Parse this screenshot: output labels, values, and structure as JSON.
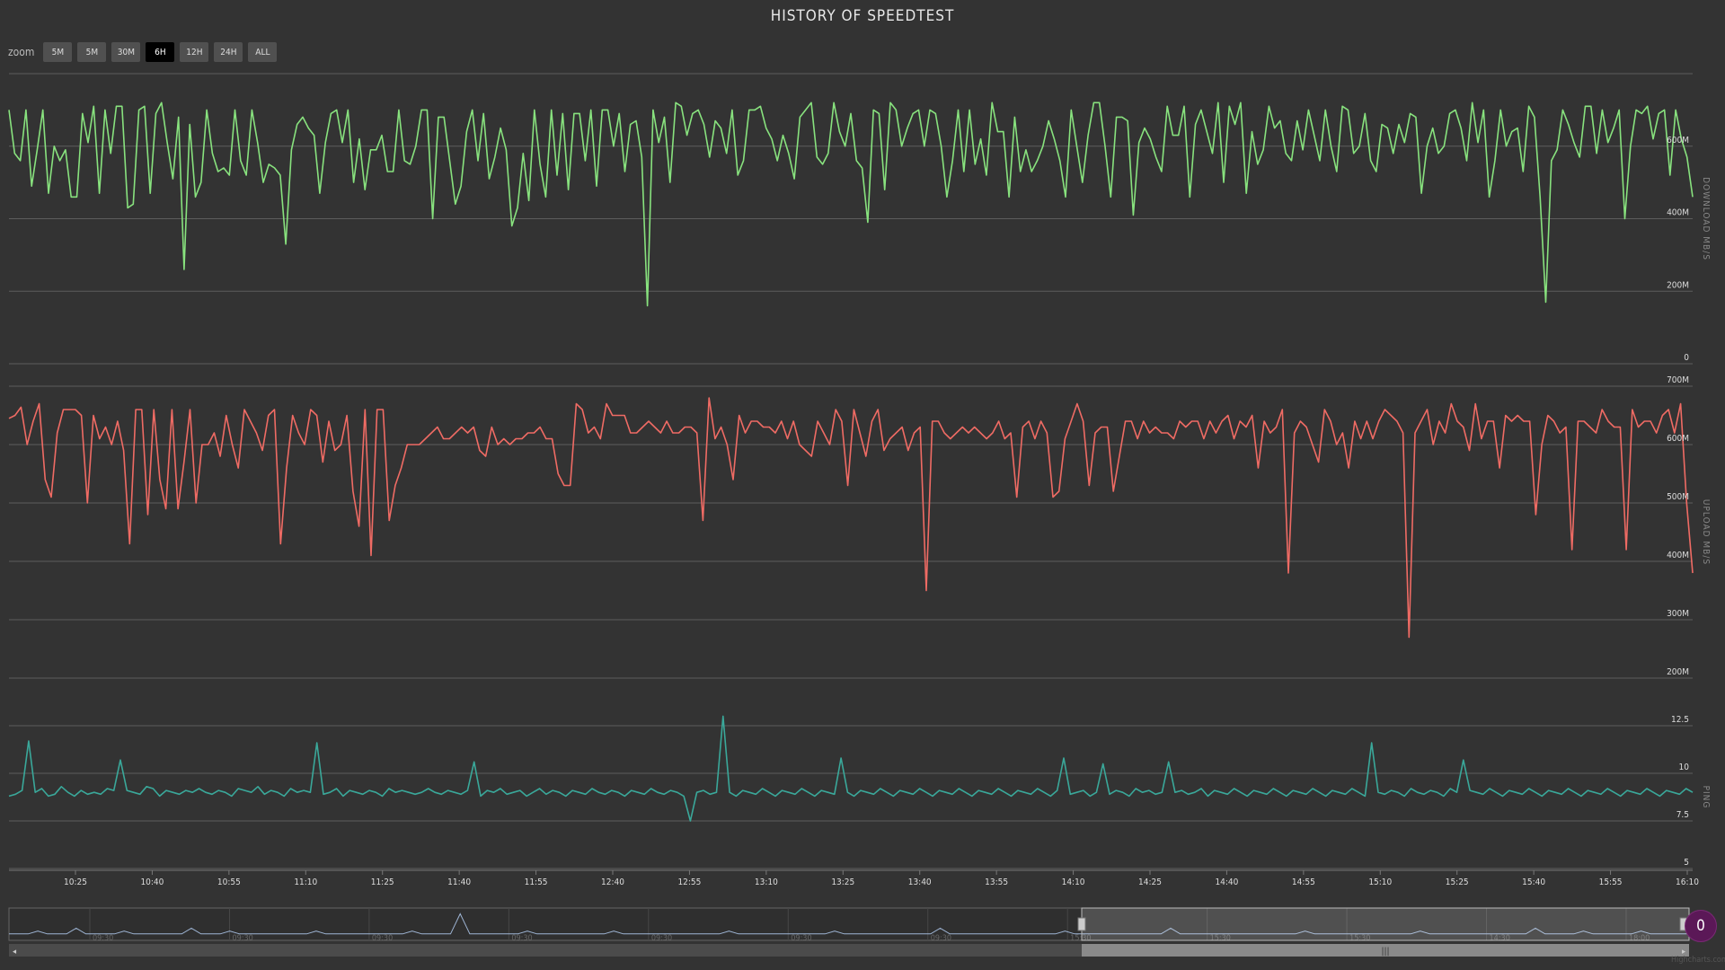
{
  "title": "HISTORY OF SPEEDTEST",
  "zoom": {
    "label": "zoom",
    "buttons": [
      "5M",
      "5M",
      "30M",
      "6H",
      "12H",
      "24H",
      "ALL"
    ],
    "active_index": 3
  },
  "colors": {
    "background": "#333333",
    "download": "#88e27e",
    "upload": "#ef6b64",
    "ping": "#3aa89a",
    "navigator": "#9fb6d6",
    "grid": "#5c5c5c"
  },
  "badge": "0",
  "credits": "Highcharts.com",
  "chart_data": [
    {
      "type": "line",
      "title": "HISTORY OF SPEEDTEST",
      "ylabel": "DOWNLOAD MB/S",
      "ylim": [
        0,
        800
      ],
      "yticks": [
        0,
        200,
        400,
        600
      ],
      "ytick_labels": [
        "0",
        "200M",
        "400M",
        "600M"
      ],
      "grid": true,
      "x_range": [
        "10:16",
        "18:13"
      ],
      "series": [
        {
          "color": "#88e27e",
          "values": [
            700,
            580,
            560,
            700,
            490,
            590,
            700,
            470,
            600,
            560,
            590,
            460,
            460,
            690,
            610,
            710,
            470,
            700,
            580,
            710,
            710,
            430,
            440,
            700,
            710,
            470,
            690,
            720,
            610,
            510,
            680,
            260,
            660,
            460,
            500,
            700,
            580,
            530,
            540,
            520,
            700,
            560,
            520,
            700,
            610,
            500,
            550,
            540,
            520,
            330,
            590,
            660,
            680,
            650,
            630,
            470,
            610,
            690,
            700,
            610,
            700,
            500,
            620,
            480,
            590,
            590,
            630,
            530,
            530,
            700,
            560,
            550,
            600,
            700,
            700,
            400,
            680,
            680,
            560,
            440,
            490,
            640,
            700,
            560,
            690,
            510,
            570,
            650,
            590,
            380,
            430,
            580,
            450,
            700,
            550,
            460,
            700,
            520,
            690,
            480,
            690,
            690,
            560,
            700,
            490,
            700,
            700,
            600,
            690,
            530,
            660,
            670,
            570,
            160,
            700,
            610,
            680,
            500,
            720,
            710,
            630,
            690,
            700,
            660,
            570,
            670,
            650,
            580,
            700,
            520,
            560,
            700,
            700,
            710,
            650,
            620,
            560,
            630,
            580,
            510,
            680,
            700,
            720,
            570,
            550,
            580,
            720,
            640,
            600,
            690,
            560,
            540,
            390,
            700,
            690,
            480,
            720,
            700,
            600,
            650,
            690,
            700,
            600,
            700,
            690,
            600,
            460,
            560,
            700,
            530,
            700,
            550,
            620,
            520,
            720,
            640,
            640,
            460,
            680,
            530,
            590,
            530,
            560,
            600,
            670,
            620,
            560,
            460,
            700,
            600,
            500,
            630,
            720,
            720,
            600,
            460,
            680,
            680,
            670,
            410,
            610,
            650,
            620,
            570,
            530,
            710,
            630,
            630,
            710,
            460,
            660,
            700,
            640,
            580,
            720,
            500,
            710,
            660,
            720,
            470,
            640,
            550,
            590,
            710,
            650,
            670,
            580,
            560,
            670,
            590,
            700,
            630,
            560,
            700,
            600,
            530,
            710,
            700,
            580,
            600,
            690,
            560,
            530,
            660,
            650,
            580,
            660,
            610,
            690,
            680,
            470,
            600,
            650,
            580,
            600,
            690,
            700,
            650,
            560,
            720,
            610,
            700,
            460,
            560,
            700,
            600,
            640,
            650,
            530,
            710,
            680,
            460,
            170,
            560,
            590,
            700,
            660,
            610,
            570,
            710,
            710,
            580,
            700,
            610,
            650,
            700,
            400,
            600,
            700,
            690,
            710,
            620,
            690,
            700,
            520,
            700,
            620,
            570,
            460
          ]
        }
      ]
    },
    {
      "type": "line",
      "ylabel": "UPLOAD MB/S",
      "ylim": [
        200,
        700
      ],
      "yticks": [
        200,
        300,
        400,
        500,
        600,
        700
      ],
      "ytick_labels": [
        "200M",
        "300M",
        "400M",
        "500M",
        "600M",
        "700M"
      ],
      "grid": true,
      "x_range": [
        "10:16",
        "18:13"
      ],
      "series": [
        {
          "color": "#ef6b64",
          "values": [
            645,
            650,
            664,
            600,
            640,
            670,
            540,
            510,
            620,
            660,
            660,
            660,
            650,
            500,
            650,
            610,
            630,
            600,
            640,
            590,
            430,
            660,
            660,
            480,
            660,
            540,
            490,
            660,
            490,
            570,
            660,
            500,
            600,
            600,
            620,
            580,
            650,
            600,
            560,
            660,
            640,
            620,
            590,
            650,
            660,
            430,
            560,
            650,
            620,
            600,
            660,
            650,
            570,
            640,
            590,
            600,
            650,
            520,
            460,
            660,
            410,
            660,
            660,
            470,
            530,
            560,
            600,
            600,
            600,
            610,
            620,
            630,
            610,
            610,
            620,
            630,
            620,
            630,
            590,
            580,
            630,
            600,
            610,
            600,
            610,
            610,
            620,
            620,
            630,
            610,
            610,
            550,
            530,
            530,
            670,
            660,
            620,
            630,
            610,
            670,
            650,
            650,
            650,
            620,
            620,
            630,
            640,
            630,
            620,
            640,
            620,
            620,
            630,
            630,
            620,
            470,
            680,
            610,
            630,
            600,
            540,
            650,
            620,
            640,
            640,
            630,
            630,
            620,
            640,
            610,
            640,
            600,
            590,
            580,
            640,
            620,
            600,
            660,
            640,
            530,
            660,
            620,
            580,
            640,
            660,
            590,
            610,
            620,
            630,
            590,
            620,
            630,
            350,
            640,
            640,
            620,
            610,
            620,
            630,
            620,
            630,
            620,
            610,
            620,
            640,
            610,
            620,
            510,
            630,
            640,
            610,
            640,
            620,
            510,
            520,
            610,
            640,
            670,
            640,
            530,
            620,
            630,
            630,
            520,
            580,
            640,
            640,
            610,
            640,
            620,
            630,
            620,
            620,
            610,
            640,
            630,
            640,
            640,
            610,
            640,
            620,
            640,
            650,
            610,
            640,
            630,
            650,
            560,
            640,
            620,
            630,
            660,
            380,
            620,
            640,
            630,
            600,
            570,
            660,
            640,
            600,
            620,
            560,
            640,
            610,
            640,
            610,
            640,
            660,
            650,
            640,
            620,
            270,
            620,
            640,
            660,
            600,
            640,
            620,
            670,
            640,
            630,
            590,
            670,
            610,
            640,
            640,
            560,
            650,
            640,
            650,
            640,
            640,
            480,
            600,
            650,
            640,
            620,
            630,
            420,
            640,
            640,
            630,
            620,
            660,
            640,
            630,
            630,
            420,
            660,
            630,
            640,
            640,
            620,
            650,
            660,
            620,
            670,
            500,
            380
          ]
        }
      ]
    },
    {
      "type": "line",
      "ylabel": "PING",
      "ylim": [
        5,
        12.5
      ],
      "yticks": [
        5,
        7.5,
        10,
        12.5
      ],
      "ytick_labels": [
        "5",
        "7.5",
        "10",
        "12.5"
      ],
      "grid": true,
      "x_labels": [
        "10:25",
        "10:40",
        "10:55",
        "11:10",
        "11:25",
        "11:40",
        "11:55",
        "12:40",
        "12:55",
        "13:10",
        "13:25",
        "13:40",
        "13:55",
        "14:10",
        "14:25",
        "14:40",
        "14:55",
        "15:10",
        "15:25",
        "15:40",
        "15:55",
        "16:10"
      ],
      "series": [
        {
          "color": "#3aa89a",
          "values": [
            8.8,
            8.9,
            9.1,
            11.7,
            9.0,
            9.2,
            8.8,
            8.9,
            9.3,
            9.0,
            8.8,
            9.1,
            8.9,
            9.0,
            8.9,
            9.2,
            9.1,
            10.7,
            9.1,
            9.0,
            8.9,
            9.3,
            9.2,
            8.8,
            9.1,
            9.0,
            8.9,
            9.1,
            9.0,
            9.2,
            9.0,
            8.9,
            9.1,
            9.0,
            8.8,
            9.2,
            9.1,
            9.0,
            9.3,
            8.9,
            9.1,
            9.0,
            8.8,
            9.2,
            9.0,
            9.1,
            9.0,
            11.6,
            8.9,
            9.0,
            9.2,
            8.8,
            9.1,
            9.0,
            8.9,
            9.1,
            9.0,
            8.8,
            9.2,
            9.0,
            9.1,
            9.0,
            8.9,
            9.0,
            9.2,
            9.0,
            8.9,
            9.1,
            9.0,
            8.9,
            9.1,
            10.6,
            8.8,
            9.1,
            9.0,
            9.2,
            8.9,
            9.0,
            9.1,
            8.8,
            9.0,
            9.2,
            8.9,
            9.1,
            9.0,
            8.8,
            9.1,
            9.0,
            8.9,
            9.2,
            9.0,
            8.9,
            9.1,
            9.0,
            8.8,
            9.1,
            9.0,
            8.9,
            9.2,
            9.0,
            8.9,
            9.1,
            9.0,
            8.8,
            7.5,
            9.0,
            9.1,
            8.9,
            9.0,
            13.0,
            9.0,
            8.8,
            9.1,
            9.0,
            8.9,
            9.2,
            9.0,
            8.8,
            9.1,
            9.0,
            8.9,
            9.2,
            9.0,
            8.8,
            9.1,
            9.0,
            8.9,
            10.8,
            9.0,
            8.8,
            9.1,
            9.0,
            8.9,
            9.2,
            9.0,
            8.8,
            9.1,
            9.0,
            8.9,
            9.2,
            9.0,
            8.8,
            9.1,
            9.0,
            8.9,
            9.2,
            9.0,
            8.8,
            9.1,
            9.0,
            8.9,
            9.2,
            9.0,
            8.8,
            9.1,
            9.0,
            8.9,
            9.2,
            9.0,
            8.8,
            9.1,
            10.8,
            8.9,
            9.0,
            9.1,
            8.8,
            9.0,
            10.5,
            8.9,
            9.1,
            9.0,
            8.8,
            9.2,
            9.0,
            9.1,
            8.9,
            9.0,
            10.6,
            9.0,
            9.1,
            8.9,
            9.0,
            9.2,
            8.8,
            9.1,
            9.0,
            8.9,
            9.2,
            9.0,
            8.8,
            9.1,
            9.0,
            8.9,
            9.2,
            9.0,
            8.8,
            9.1,
            9.0,
            8.9,
            9.2,
            9.0,
            8.8,
            9.1,
            9.0,
            8.9,
            9.2,
            9.0,
            8.8,
            11.6,
            9.0,
            8.9,
            9.1,
            9.0,
            8.8,
            9.2,
            9.0,
            8.9,
            9.1,
            9.0,
            8.8,
            9.2,
            9.0,
            10.7,
            9.1,
            9.0,
            8.9,
            9.2,
            9.0,
            8.8,
            9.1,
            9.0,
            8.9,
            9.2,
            9.0,
            8.8,
            9.1,
            9.0,
            8.9,
            9.2,
            9.0,
            8.8,
            9.1,
            9.0,
            8.9,
            9.2,
            9.0,
            8.8,
            9.1,
            9.0,
            8.9,
            9.2,
            9.0,
            8.8,
            9.1,
            9.0,
            8.9,
            9.2,
            9.0
          ]
        }
      ]
    },
    {
      "type": "line",
      "title": "",
      "x_labels": [
        "09:30",
        "09:30",
        "09:30",
        "09:30",
        "09:30",
        "09:30",
        "09:30",
        "15:30",
        "15:30",
        "15:30",
        "14:30",
        "18:00"
      ],
      "series": [
        {
          "color": "#9fb6d6",
          "values": [
            1,
            1,
            1,
            2,
            1,
            1,
            1,
            3,
            1,
            1,
            1,
            1,
            2,
            1,
            1,
            1,
            1,
            1,
            1,
            3,
            1,
            1,
            1,
            2,
            1,
            1,
            1,
            1,
            1,
            1,
            1,
            1,
            2,
            1,
            1,
            1,
            1,
            1,
            1,
            1,
            1,
            1,
            2,
            1,
            1,
            1,
            1,
            8,
            1,
            1,
            1,
            1,
            1,
            1,
            2,
            1,
            1,
            1,
            1,
            1,
            1,
            1,
            1,
            2,
            1,
            1,
            1,
            1,
            1,
            1,
            1,
            1,
            1,
            1,
            1,
            2,
            1,
            1,
            1,
            1,
            1,
            1,
            1,
            1,
            1,
            1,
            2,
            1,
            1,
            1,
            1,
            1,
            1,
            1,
            1,
            1,
            1,
            3,
            1,
            1,
            1,
            1,
            1,
            1,
            1,
            1,
            1,
            1,
            1,
            1,
            2,
            1,
            1,
            1,
            1,
            1,
            1,
            1,
            1,
            1,
            1,
            3,
            1,
            1,
            1,
            1,
            1,
            1,
            1,
            1,
            1,
            1,
            1,
            1,
            1,
            2,
            1,
            1,
            1,
            1,
            1,
            1,
            1,
            1,
            1,
            1,
            1,
            2,
            1,
            1,
            1,
            1,
            1,
            1,
            1,
            1,
            1,
            1,
            1,
            3,
            1,
            1,
            1,
            1,
            2,
            1,
            1,
            1,
            1,
            1,
            2,
            1,
            1,
            1,
            1,
            1
          ]
        }
      ]
    }
  ]
}
